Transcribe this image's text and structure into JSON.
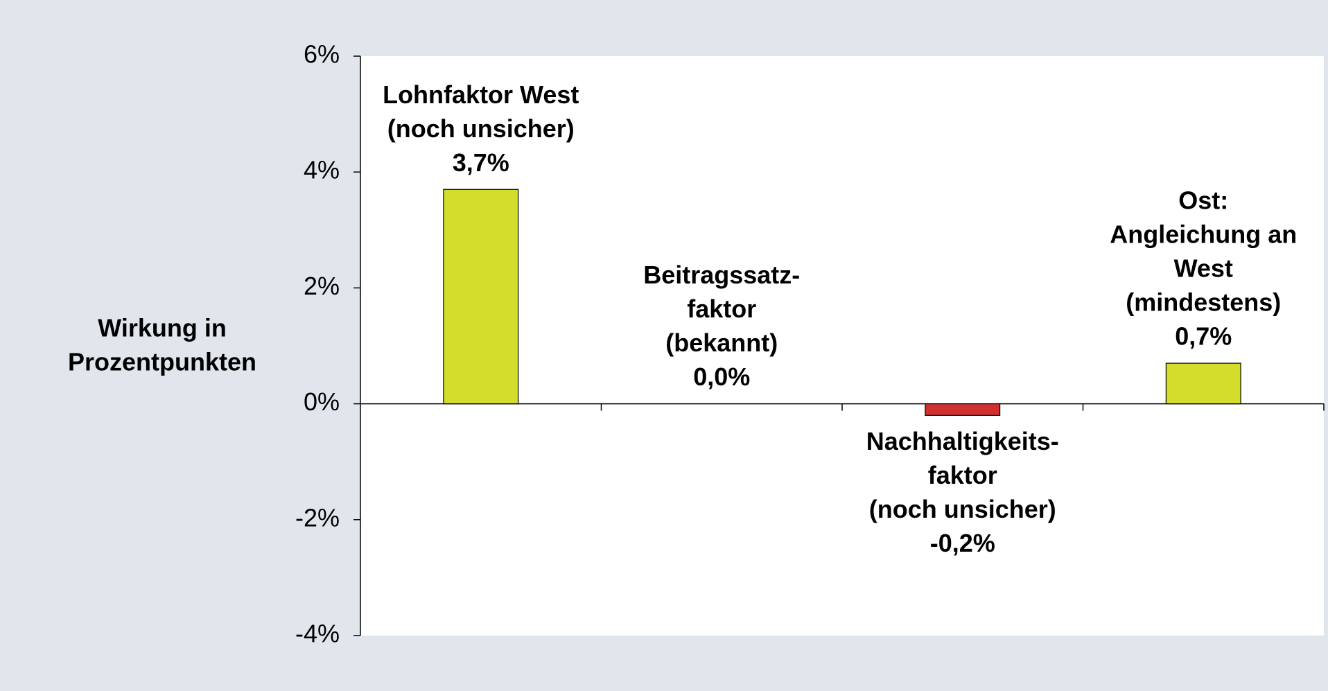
{
  "chart_data": {
    "type": "bar",
    "ylabel": [
      "Wirkung in",
      "Prozentpunkten"
    ],
    "categories": [
      [
        "Lohnfaktor West",
        "(noch unsicher)"
      ],
      [
        "Beitragssatz-",
        "faktor",
        "(bekannt)"
      ],
      [
        "Nachhaltigkeits-",
        "faktor",
        "(noch unsicher)"
      ],
      [
        "Ost:",
        "Angleichung an",
        "West",
        "(mindestens)"
      ]
    ],
    "values": [
      3.7,
      0.0,
      -0.2,
      0.7
    ],
    "value_labels": [
      "3,7%",
      "0,0%",
      "-0,2%",
      "0,7%"
    ],
    "colors": [
      "#d4dc2c",
      "#d4dc2c",
      "#d03030",
      "#d4dc2c"
    ],
    "ylim": [
      -4,
      6
    ],
    "yticks": [
      {
        "value": -4,
        "label": "-4%"
      },
      {
        "value": -2,
        "label": "-2%"
      },
      {
        "value": 0,
        "label": "0%"
      },
      {
        "value": 2,
        "label": "2%"
      },
      {
        "value": 4,
        "label": "4%"
      },
      {
        "value": 6,
        "label": "6%"
      }
    ]
  }
}
